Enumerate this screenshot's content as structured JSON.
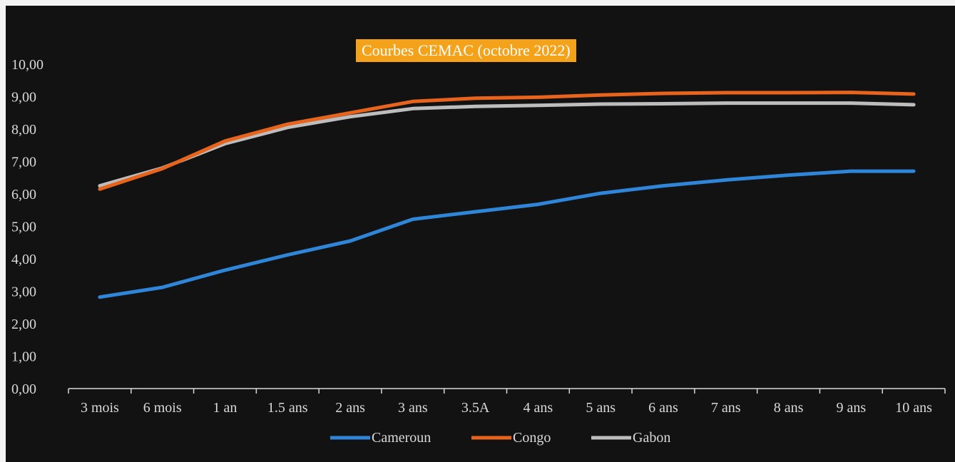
{
  "chart_data": {
    "type": "line",
    "title": "Courbes CEMAC (octobre 2022)",
    "xlabel": "",
    "ylabel": "",
    "ylim": [
      0,
      10
    ],
    "yticks": [
      "0,00",
      "1,00",
      "2,00",
      "3,00",
      "4,00",
      "5,00",
      "6,00",
      "7,00",
      "8,00",
      "9,00",
      "10,00"
    ],
    "categories": [
      "3 mois",
      "6 mois",
      "1 an",
      "1.5 ans",
      "2 ans",
      "3 ans",
      "3.5A",
      "4 ans",
      "5 ans",
      "6 ans",
      "7 ans",
      "8 ans",
      "9 ans",
      "10 ans"
    ],
    "grid": false,
    "legend_position": "bottom",
    "series": [
      {
        "name": "Cameroun",
        "color": "#2f86d8",
        "values": [
          2.82,
          3.12,
          3.65,
          4.12,
          4.55,
          5.22,
          5.45,
          5.68,
          6.02,
          6.25,
          6.43,
          6.58,
          6.7,
          6.7
        ]
      },
      {
        "name": "Congo",
        "color": "#e8641c",
        "values": [
          6.15,
          6.78,
          7.63,
          8.15,
          8.5,
          8.85,
          8.95,
          8.98,
          9.05,
          9.1,
          9.12,
          9.12,
          9.13,
          9.08
        ]
      },
      {
        "name": "Gabon",
        "color": "#bdbdbd",
        "values": [
          6.25,
          6.8,
          7.55,
          8.05,
          8.38,
          8.63,
          8.7,
          8.73,
          8.77,
          8.78,
          8.8,
          8.8,
          8.8,
          8.75
        ]
      }
    ]
  }
}
